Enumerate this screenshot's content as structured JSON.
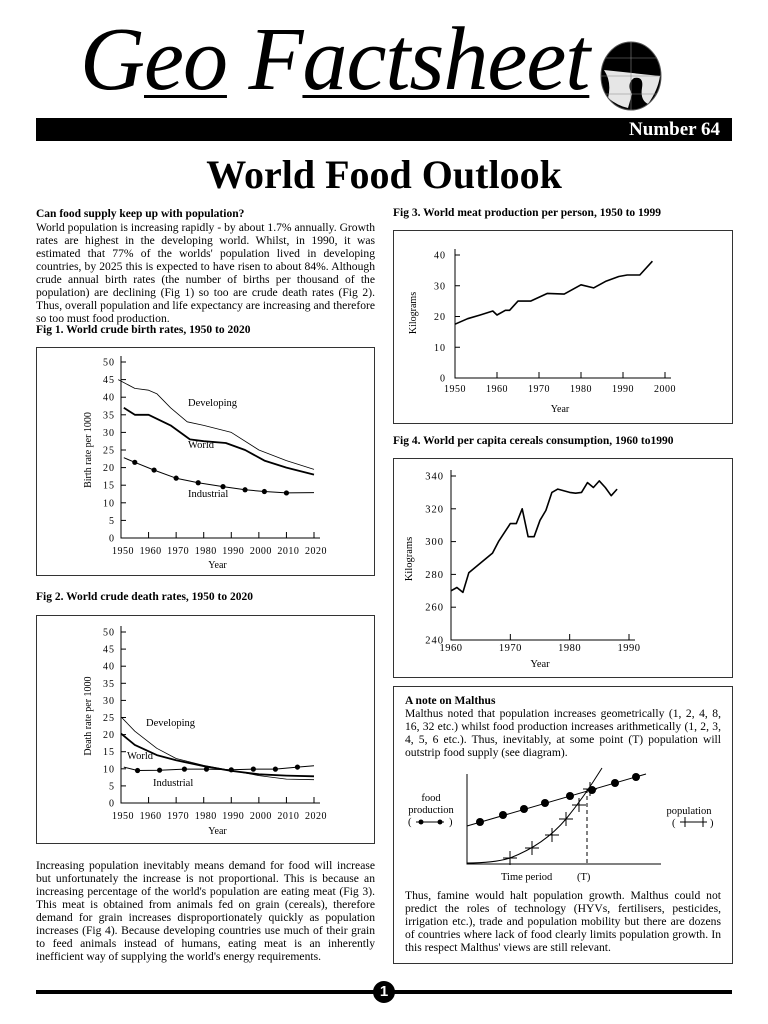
{
  "header": {
    "brand_pre": "G",
    "brand_eo": "eo",
    "brand_F": "F",
    "brand_rest": "actsheet",
    "issue": "Number 64",
    "title": "World Food Outlook"
  },
  "intro": {
    "heading": "Can food supply keep up with population?",
    "body": "World population is increasing rapidly - by about 1.7% annually. Growth rates are highest in the developing world. Whilst, in 1990, it was estimated that 77% of the worlds' population lived in developing countries, by 2025 this is expected to have risen to about 84%. Although crude annual birth rates (the number of births per thousand of the population) are declining (Fig 1) so too are crude death rates (Fig 2). Thus, overall population and life expectancy are increasing and therefore so too must food production."
  },
  "body2": "Increasing population inevitably means demand for food will increase but unfortunately the increase is not proportional. This is because an increasing percentage of the world's population are eating meat (Fig 3). This meat is obtained from animals fed on grain (cereals), therefore demand for grain increases disproportionately quickly as population increases (Fig 4). Because developing countries use much of their grain to feed animals instead of humans, eating meat is an inherently inefficient way of supplying the world's energy requirements.",
  "malthus": {
    "heading": "A note on Malthus",
    "body1": "Malthus noted that population increases geometrically (1, 2, 4, 8, 16, 32 etc.) whilst food production increases arithmetically (1, 2, 3, 4, 5, 6 etc.). Thus, inevitably, at some point (T) population will outstrip food supply (see diagram).",
    "body2": "Thus, famine would halt population growth. Malthus could not predict the roles of technology (HYVs, fertilisers, pesticides, irrigation etc.), trade and population mobility but there are dozens of countries where lack of food clearly limits population growth. In this respect Malthus' views are still relevant.",
    "diagram": {
      "food_label_1": "food",
      "food_label_2": "production",
      "population_label": "population",
      "x_label": "Time period",
      "t_label": "(T)",
      "legend_open": "(",
      "legend_close": ")"
    }
  },
  "footer": {
    "page_number": "1"
  },
  "chart_data": [
    {
      "type": "line",
      "title": "Fig 1. World crude birth rates, 1950 to 2020",
      "xlabel": "Year",
      "ylabel": "Birth rate per 1000",
      "xlim": [
        1950,
        2020
      ],
      "ylim": [
        0,
        50
      ],
      "xticks": [
        1950,
        1960,
        1970,
        1980,
        1990,
        2000,
        2010,
        2020
      ],
      "yticks": [
        0,
        5,
        10,
        15,
        20,
        25,
        30,
        35,
        40,
        45,
        50
      ],
      "grid": false,
      "series": [
        {
          "name": "Developing",
          "markers": false,
          "x": [
            1949,
            1955,
            1960,
            1963,
            1968,
            1974,
            1980,
            1990,
            2000,
            2010,
            2020
          ],
          "y": [
            45,
            42.5,
            42,
            41,
            37,
            33,
            32,
            30,
            25,
            22,
            19.5
          ]
        },
        {
          "name": "World",
          "markers": false,
          "x": [
            1951,
            1955,
            1960,
            1968,
            1975,
            1980,
            1988,
            1995,
            2002,
            2010,
            2020
          ],
          "y": [
            37,
            35,
            35,
            32,
            28,
            27.5,
            27,
            25,
            22,
            20,
            18
          ]
        },
        {
          "name": "Industrial",
          "markers": true,
          "x": [
            1951,
            1955,
            1962,
            1970,
            1978,
            1987,
            1995,
            2002,
            2010,
            2020
          ],
          "y": [
            22.8,
            21.5,
            19.3,
            17,
            15.7,
            14.6,
            13.7,
            13.2,
            12.8,
            12.9
          ]
        }
      ]
    },
    {
      "type": "line",
      "title": "Fig 2. World crude death rates, 1950 to 2020",
      "xlabel": "Year",
      "ylabel": "Death rate per 1000",
      "xlim": [
        1950,
        2020
      ],
      "ylim": [
        0,
        50
      ],
      "xticks": [
        1950,
        1960,
        1970,
        1980,
        1990,
        2000,
        2010,
        2020
      ],
      "yticks": [
        0,
        5,
        10,
        15,
        20,
        25,
        30,
        35,
        40,
        45,
        50
      ],
      "grid": false,
      "series": [
        {
          "name": "Developing",
          "markers": false,
          "x": [
            1950,
            1955,
            1963,
            1970,
            1980,
            1990,
            2000,
            2010,
            2020
          ],
          "y": [
            25.2,
            21,
            16,
            13,
            11,
            9.5,
            8,
            7,
            6.8
          ]
        },
        {
          "name": "World",
          "markers": false,
          "x": [
            1950,
            1955,
            1963,
            1970,
            1980,
            1990,
            2000,
            2010,
            2020
          ],
          "y": [
            20.3,
            17,
            14,
            12.5,
            10.8,
            9.4,
            8.4,
            8,
            7.8
          ]
        },
        {
          "name": "Industrial",
          "markers": true,
          "x": [
            1951,
            1956,
            1964,
            1973,
            1981,
            1990,
            1998,
            2006,
            2014,
            2020
          ],
          "y": [
            10.5,
            9.5,
            9.6,
            9.9,
            9.9,
            9.7,
            9.9,
            9.9,
            10.5,
            10.9
          ]
        }
      ]
    },
    {
      "type": "line",
      "title": "Fig 3. World meat production per person, 1950 to 1999",
      "xlabel": "Year",
      "ylabel": "Kilograms",
      "xlim": [
        1950,
        2000
      ],
      "ylim": [
        0,
        40
      ],
      "xticks": [
        1950,
        1960,
        1970,
        1980,
        1990,
        2000
      ],
      "yticks": [
        0,
        10,
        20,
        30,
        40
      ],
      "grid": false,
      "series": [
        {
          "x": [
            1950,
            1953,
            1956,
            1959,
            1960,
            1962,
            1963,
            1964,
            1965,
            1968,
            1972,
            1976,
            1980,
            1983,
            1986,
            1989,
            1991,
            1994,
            1997
          ],
          "y": [
            17.5,
            19.3,
            20.5,
            21.8,
            20.5,
            22,
            22,
            23.5,
            25,
            25,
            27.5,
            27.3,
            30.3,
            29.3,
            31.5,
            33,
            33.5,
            33.5,
            38
          ]
        }
      ]
    },
    {
      "type": "line",
      "title": "Fig 4. World per capita cereals consumption, 1960 to1990",
      "xlabel": "Year",
      "ylabel": "Kilograms",
      "xlim": [
        1960,
        1990
      ],
      "ylim": [
        240,
        340
      ],
      "xticks": [
        1960,
        1970,
        1980,
        1990
      ],
      "yticks": [
        240,
        260,
        280,
        300,
        320,
        340
      ],
      "grid": false,
      "series": [
        {
          "x": [
            1960,
            1961,
            1962,
            1963,
            1965,
            1967,
            1968,
            1970,
            1971,
            1972,
            1973,
            1974,
            1975,
            1976,
            1977,
            1978,
            1980,
            1981,
            1982,
            1983,
            1984,
            1985,
            1986,
            1987,
            1988
          ],
          "y": [
            270,
            272,
            269,
            281,
            287,
            293,
            300,
            311,
            311,
            320,
            303,
            303,
            313,
            319,
            330,
            332,
            330,
            329.5,
            330,
            336,
            333,
            337,
            333,
            328,
            332
          ]
        }
      ]
    }
  ]
}
